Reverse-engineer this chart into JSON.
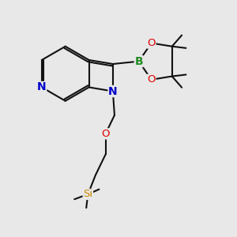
{
  "background_color": "#e8e8e8",
  "xlim": [
    -0.5,
    5.8
  ],
  "ylim": [
    -2.8,
    4.2
  ],
  "lw": 1.5,
  "atom_colors": {
    "N": "#0000CC",
    "B": "#228B22",
    "O": "#DD0000",
    "Si": "#CC8800",
    "C": "#111111"
  }
}
